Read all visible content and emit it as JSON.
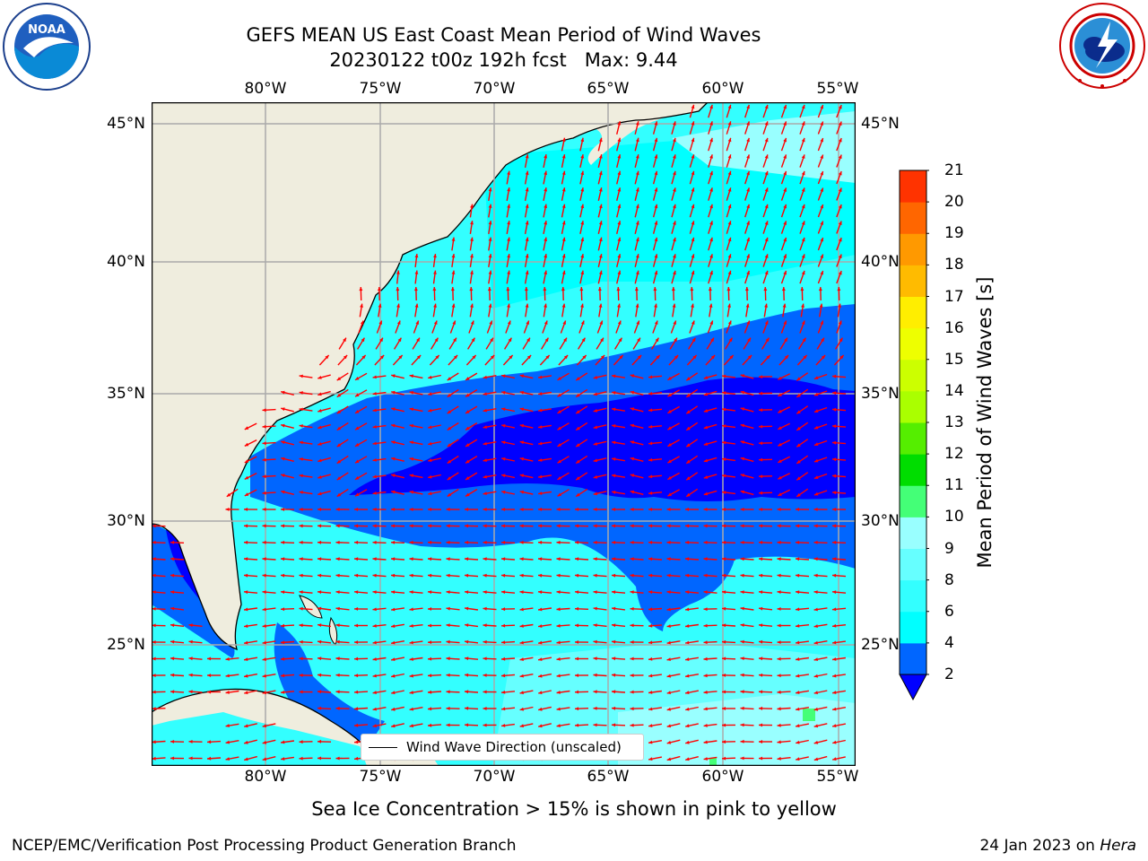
{
  "title": {
    "line1": "GEFS MEAN US East Coast Mean Period of Wind Waves",
    "line2": "20230122 t00z 192h fcst   Max: 9.44"
  },
  "logos": {
    "left": {
      "text": "NOAA",
      "ring_text": "NATIONAL OCEANIC AND ATMOSPHERIC ADMINISTRATION · U.S. DEPARTMENT OF COMMERCE"
    },
    "right": {
      "ring_text": "NATIONAL WEATHER SERVICE"
    }
  },
  "map": {
    "lon_ticks": [
      "80°W",
      "75°W",
      "70°W",
      "65°W",
      "60°W",
      "55°W"
    ],
    "lat_ticks_left": [
      "45°N",
      "40°N",
      "35°N",
      "30°N",
      "25°N"
    ],
    "lat_ticks_right": [
      "45°N",
      "40°N",
      "35°N",
      "30°N",
      "25°N"
    ],
    "extent": {
      "lon_min": -85,
      "lon_max": -54.5,
      "lat_min": 20.5,
      "lat_max": 46
    },
    "legend_label": "Wind Wave Direction (unscaled)",
    "colors": {
      "land": "#efedde",
      "grid": "#aaaaaa",
      "arrows": "#ff0000",
      "coast": "#000000"
    }
  },
  "colorbar": {
    "label": "Mean Period of Wind Waves [s]",
    "ticks": [
      "21",
      "20",
      "19",
      "18",
      "17",
      "16",
      "15",
      "14",
      "13",
      "12",
      "11",
      "10",
      "9",
      "8",
      "6",
      "4",
      "2"
    ],
    "levels": [
      2,
      4,
      6,
      8,
      9,
      10,
      11,
      12,
      13,
      14,
      15,
      16,
      17,
      18,
      19,
      20,
      21
    ],
    "colors": [
      "#0066ff",
      "#00ffff",
      "#33ffff",
      "#66ffff",
      "#99ffff",
      "#44ff77",
      "#00dd00",
      "#55ee00",
      "#aaff00",
      "#ccff00",
      "#eeff00",
      "#ffee00",
      "#ffbb00",
      "#ff9900",
      "#ff6600",
      "#ff3300",
      "#ff0000"
    ],
    "extend_below_color": "#0000ff"
  },
  "footer": {
    "ice_note": "Sea Ice Concentration > 15% is shown in pink to yellow",
    "credit": "NCEP/EMC/Verification Post Processing Product Generation Branch",
    "date": "24 Jan 2023 on",
    "machine": "Hera"
  }
}
